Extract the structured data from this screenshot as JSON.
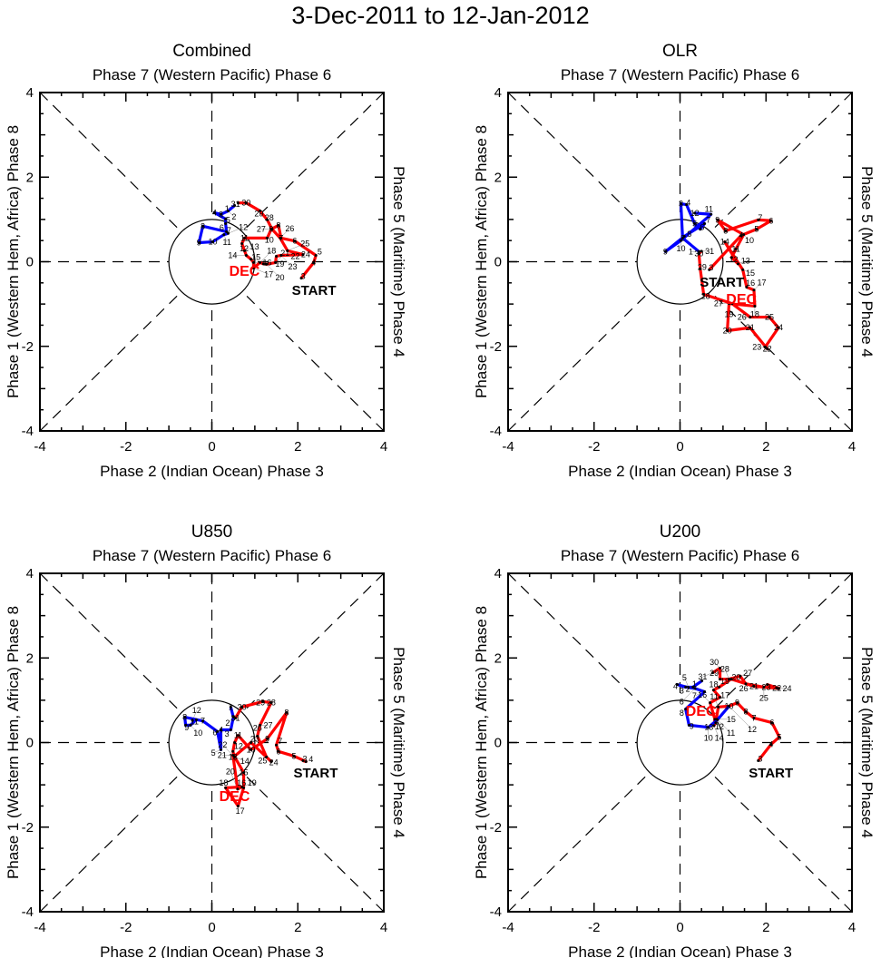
{
  "title": "3-Dec-2011 to 12-Jan-2012",
  "chart_data": [
    {
      "type": "line",
      "title": "Combined",
      "top_label": "Phase 7 (Western Pacific) Phase 6",
      "bottom_label": "Phase 2 (Indian Ocean) Phase 3",
      "left_label": "Phase 1 (Western Hem, Africa) Phase 8",
      "right_label": "Phase 5 (Maritime) Phase 4",
      "xlim": [
        -4,
        4
      ],
      "ylim": [
        -4,
        4
      ],
      "ticks": [
        "-4",
        "-2",
        "0",
        "2",
        "4"
      ],
      "start_label": "START",
      "month_label": "DEC",
      "series": [
        {
          "name": "December",
          "color": "#ff0000",
          "points": [
            [
              2.08,
              -0.39,
              3
            ],
            [
              2.37,
              -0.02,
              4
            ],
            [
              2.42,
              0.15,
              5
            ],
            [
              1.93,
              0.49,
              6
            ],
            [
              1.61,
              0.56,
              7
            ],
            [
              1.55,
              0.86,
              8
            ],
            [
              1.38,
              0.77,
              9
            ],
            [
              1.29,
              0.56,
              10
            ],
            [
              0.76,
              0.56,
              11
            ],
            [
              0.7,
              0.43,
              12
            ],
            [
              0.76,
              0.26,
              13
            ],
            [
              0.8,
              0.15,
              14
            ],
            [
              0.91,
              0.06,
              15
            ],
            [
              0.97,
              -0.02,
              16
            ],
            [
              0.97,
              -0.15,
              17
            ],
            [
              1.12,
              -0.02,
              18
            ],
            [
              1.2,
              -0.05,
              19
            ],
            [
              1.27,
              -0.06,
              20
            ],
            [
              1.48,
              -0.02,
              21
            ],
            [
              1.5,
              0.13,
              22
            ],
            [
              1.61,
              0.15,
              23
            ],
            [
              2.12,
              0.17,
              24
            ],
            [
              1.76,
              0.26,
              25
            ],
            [
              1.59,
              0.56,
              26
            ],
            [
              1.4,
              0.77,
              27
            ],
            [
              1.29,
              0.99,
              28
            ],
            [
              1.12,
              1.2,
              29
            ],
            [
              0.8,
              1.39,
              30
            ],
            [
              0.61,
              1.39,
              31
            ]
          ]
        },
        {
          "name": "January",
          "color": "#0000ff",
          "points": [
            [
              0.53,
              1.33,
              1
            ],
            [
              0.38,
              1.2,
              2
            ],
            [
              0.21,
              1.12,
              3
            ],
            [
              0.06,
              1.16,
              4
            ],
            [
              0.32,
              1.01,
              5
            ],
            [
              0.32,
              0.9,
              6
            ],
            [
              0.34,
              0.71,
              7
            ],
            [
              -0.21,
              0.84,
              8
            ],
            [
              -0.3,
              0.45,
              9
            ],
            [
              0.02,
              0.47,
              10
            ],
            [
              0.28,
              0.64,
              11
            ],
            [
              0.38,
              0.67,
              12
            ]
          ]
        }
      ]
    },
    {
      "type": "line",
      "title": "OLR",
      "top_label": "Phase 7 (Western Pacific) Phase 6",
      "bottom_label": "Phase 2 (Indian Ocean) Phase 3",
      "left_label": "Phase 1 (Western Hem, Africa) Phase 8",
      "right_label": "Phase 5 (Maritime) Phase 4",
      "xlim": [
        -4,
        4
      ],
      "ylim": [
        -4,
        4
      ],
      "ticks": [
        "-4",
        "-2",
        "0",
        "2",
        "4"
      ],
      "start_label": "START",
      "month_label": "DEC",
      "series": [
        {
          "name": "December",
          "color": "#ff0000",
          "points": [
            [
              0.68,
              -0.19,
              3
            ],
            [
              1.42,
              0.62,
              4
            ],
            [
              1.78,
              0.77,
              5
            ],
            [
              2.12,
              0.97,
              6
            ],
            [
              1.82,
              0.99,
              7
            ],
            [
              1.06,
              0.73,
              8
            ],
            [
              0.87,
              0.99,
              9
            ],
            [
              1.48,
              0.64,
              10
            ],
            [
              1.3,
              0.3,
              11
            ],
            [
              1.2,
              0.1,
              12
            ],
            [
              1.35,
              -0.05,
              13
            ],
            [
              1.04,
              0.47,
              14
            ],
            [
              1.46,
              -0.19,
              15
            ],
            [
              1.55,
              -0.6,
              16
            ],
            [
              1.72,
              -0.67,
              17
            ],
            [
              1.74,
              -1.05,
              18
            ],
            [
              1.14,
              -0.99,
              19
            ],
            [
              1.1,
              -1.63,
              20
            ],
            [
              1.63,
              -1.56,
              21
            ],
            [
              2.03,
              -2.06,
              22
            ],
            [
              1.98,
              -2.02,
              23
            ],
            [
              2.29,
              -1.56,
              24
            ],
            [
              2.08,
              -1.31,
              25
            ],
            [
              1.63,
              -1.31,
              26
            ],
            [
              1.21,
              -0.99,
              27
            ],
            [
              0.55,
              -0.77,
              28
            ],
            [
              0.47,
              -0.17,
              29
            ],
            [
              0.44,
              0.19,
              30
            ],
            [
              0.5,
              0.25,
              31
            ]
          ]
        },
        {
          "name": "January",
          "color": "#0000ff",
          "points": [
            [
              0.44,
              0.24,
              1
            ],
            [
              0.06,
              0.56,
              2
            ],
            [
              0.02,
              1.37,
              3
            ],
            [
              0.15,
              1.35,
              4
            ],
            [
              0.34,
              0.9,
              5
            ],
            [
              0.47,
              0.77,
              6
            ],
            [
              0.57,
              0.9,
              7
            ],
            [
              0.1,
              0.6,
              8
            ],
            [
              -0.34,
              0.24,
              9
            ],
            [
              0.02,
              0.5,
              10
            ],
            [
              0.72,
              1.12,
              11
            ],
            [
              0.34,
              1.15,
              12
            ]
          ]
        }
      ]
    },
    {
      "type": "line",
      "title": "U850",
      "top_label": "Phase 7 (Western Pacific) Phase 6",
      "bottom_label": "Phase 2 (Indian Ocean) Phase 3",
      "left_label": "Phase 1 (Western Hem, Africa) Phase 8",
      "right_label": "Phase 5 (Maritime) Phase 4",
      "xlim": [
        -4,
        4
      ],
      "ylim": [
        -4,
        4
      ],
      "ticks": [
        "-4",
        "-2",
        "0",
        "2",
        "4"
      ],
      "start_label": "START",
      "month_label": "DEC",
      "series": [
        {
          "name": "December",
          "color": "#ff0000",
          "points": [
            [
              2.12,
              -0.43,
              3
            ],
            [
              2.19,
              -0.45,
              4
            ],
            [
              1.91,
              -0.32,
              5
            ],
            [
              1.55,
              -0.21,
              6
            ],
            [
              1.5,
              -0.06,
              7
            ],
            [
              1.74,
              0.71,
              8
            ],
            [
              1.29,
              0.09,
              9
            ],
            [
              0.91,
              -0.17,
              10
            ],
            [
              0.61,
              0.17,
              11
            ],
            [
              0.53,
              0.0,
              12
            ],
            [
              0.49,
              -0.21,
              13
            ],
            [
              0.53,
              -0.34,
              14
            ],
            [
              0.74,
              -0.71,
              15
            ],
            [
              0.74,
              -1.07,
              16
            ],
            [
              0.61,
              -1.5,
              17
            ],
            [
              0.32,
              -1.07,
              18
            ],
            [
              0.7,
              -1.05,
              19
            ],
            [
              0.6,
              -1.1,
              20
            ],
            [
              0.49,
              -0.3,
              21
            ],
            [
              0.52,
              -0.33,
              22
            ],
            [
              0.91,
              0.0,
              23
            ],
            [
              1.38,
              -0.45,
              24
            ],
            [
              1.27,
              -0.34,
              25
            ],
            [
              1.06,
              0.15,
              26
            ],
            [
              1.12,
              0.41,
              27
            ],
            [
              1.38,
              0.94,
              28
            ],
            [
              1.19,
              0.97,
              29
            ],
            [
              0.7,
              0.84,
              30
            ],
            [
              0.55,
              0.58,
              31
            ]
          ]
        },
        {
          "name": "January",
          "color": "#0000ff",
          "points": [
            [
              0.44,
              0.84,
              1
            ],
            [
              0.5,
              0.6,
              2
            ],
            [
              0.44,
              0.3,
              3
            ],
            [
              0.21,
              0.3,
              4
            ],
            [
              0.21,
              -0.17,
              5
            ],
            [
              0.13,
              0.26,
              6
            ],
            [
              -0.21,
              0.51,
              7
            ],
            [
              -0.63,
              0.6,
              8
            ],
            [
              -0.61,
              0.41,
              9
            ],
            [
              -0.5,
              0.41,
              10
            ],
            [
              -0.36,
              0.54,
              11
            ],
            [
              -0.45,
              0.52,
              12
            ]
          ]
        }
      ]
    },
    {
      "type": "line",
      "title": "U200",
      "top_label": "Phase 7 (Western Pacific) Phase 6",
      "bottom_label": "Phase 2 (Indian Ocean) Phase 3",
      "left_label": "Phase 1 (Western Hem, Africa) Phase 8",
      "right_label": "Phase 5 (Maritime) Phase 4",
      "xlim": [
        -4,
        4
      ],
      "ylim": [
        -4,
        4
      ],
      "ticks": [
        "-4",
        "-2",
        "0",
        "2",
        "4"
      ],
      "start_label": "START",
      "month_label": "DEC",
      "series": [
        {
          "name": "December",
          "color": "#ff0000",
          "points": [
            [
              1.82,
              -0.43,
              3
            ],
            [
              2.12,
              -0.04,
              4
            ],
            [
              2.31,
              0.13,
              5
            ],
            [
              2.14,
              0.47,
              6
            ],
            [
              1.72,
              0.58,
              7
            ],
            [
              1.53,
              0.73,
              8
            ],
            [
              1.33,
              0.94,
              9
            ],
            [
              1.14,
              0.86,
              10
            ],
            [
              0.89,
              0.84,
              11
            ],
            [
              0.83,
              0.47,
              12
            ],
            [
              0.85,
              0.55,
              13
            ],
            [
              0.79,
              0.4,
              14
            ],
            [
              0.81,
              0.55,
              15
            ],
            [
              0.7,
              0.94,
              16
            ],
            [
              0.93,
              1.07,
              17
            ],
            [
              0.78,
              1.24,
              18
            ],
            [
              0.91,
              1.31,
              19
            ],
            [
              1.19,
              1.5,
              20
            ],
            [
              1.72,
              1.33,
              21
            ],
            [
              2.25,
              1.29,
              22
            ],
            [
              2.03,
              1.37,
              23
            ],
            [
              2.3,
              1.28,
              24
            ],
            [
              1.95,
              1.31,
              25
            ],
            [
              1.53,
              1.39,
              26
            ],
            [
              1.4,
              1.57,
              27
            ],
            [
              1.14,
              1.5,
              28
            ],
            [
              0.93,
              1.5,
              29
            ],
            [
              0.93,
              1.76,
              30
            ],
            [
              0.76,
              1.65,
              31
            ]
          ]
        },
        {
          "name": "January",
          "color": "#0000ff",
          "points": [
            [
              0.51,
              1.46,
              1
            ],
            [
              0.3,
              1.31,
              2
            ],
            [
              0.13,
              1.31,
              3
            ],
            [
              -0.06,
              1.37,
              4
            ],
            [
              0.2,
              1.3,
              5
            ],
            [
              0.35,
              1.28,
              6
            ],
            [
              0.57,
              1.2,
              7
            ],
            [
              0.13,
              0.79,
              8
            ],
            [
              0.21,
              0.41,
              9
            ],
            [
              0.66,
              0.36,
              10
            ],
            [
              0.87,
              0.54,
              11
            ],
            [
              1.14,
              0.86,
              12
            ]
          ]
        }
      ]
    }
  ]
}
